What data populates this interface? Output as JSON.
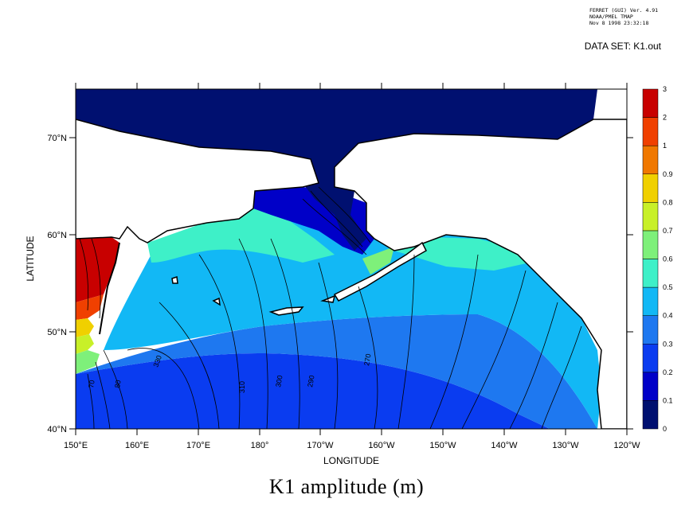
{
  "header": {
    "line1": "FERRET (GUI) Ver. 4.91",
    "line2": "NOAA/PMEL TMAP",
    "line3": "Nov  8 1998 23:32:18",
    "dataset": "DATA SET: K1.out"
  },
  "title": "K1 amplitude (m)",
  "axes": {
    "xlabel": "LONGITUDE",
    "ylabel": "LATITUDE",
    "x_ticks": [
      "150°E",
      "160°E",
      "170°E",
      "180°",
      "170°W",
      "160°W",
      "150°W",
      "140°W",
      "130°W",
      "120°W"
    ],
    "y_ticks": [
      "40°N",
      "50°N",
      "60°N",
      "70°N"
    ]
  },
  "colorbar": {
    "levels": [
      "0",
      "0.1",
      "0.2",
      "0.3",
      "0.4",
      "0.5",
      "0.6",
      "0.7",
      "0.8",
      "0.9",
      "1",
      "2",
      "3"
    ],
    "colors": [
      "#001070",
      "#0000c8",
      "#0a3cf0",
      "#1e78f0",
      "#12b8f5",
      "#3ef0c8",
      "#7ef07a",
      "#c8f028",
      "#f0d000",
      "#f07800",
      "#f04000",
      "#c80000"
    ]
  },
  "contour_labels": [
    "330",
    "310",
    "300",
    "290",
    "270",
    "70",
    "80"
  ],
  "chart_data": {
    "type": "heatmap",
    "title": "K1 amplitude (m)",
    "xlabel": "LONGITUDE",
    "ylabel": "LATITUDE",
    "xlim": [
      "150°E",
      "120°W"
    ],
    "ylim": [
      "40°N",
      "75°N"
    ],
    "colorbar_levels": [
      0,
      0.1,
      0.2,
      0.3,
      0.4,
      0.5,
      0.6,
      0.7,
      0.8,
      0.9,
      1,
      2,
      3
    ]
  }
}
